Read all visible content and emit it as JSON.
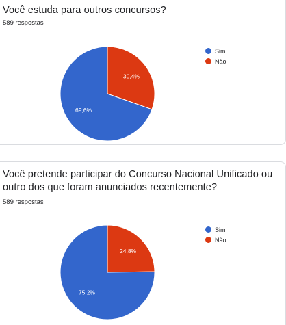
{
  "colors": {
    "sim": "#3366cc",
    "nao": "#dc3912",
    "slice_border": "#ffffff"
  },
  "questions": [
    {
      "title": "Você estuda para outros concursos?",
      "responses": "589 respostas"
    },
    {
      "title": "Você pretende participar do Concurso Nacional Unificado ou outro dos que foram anunciados recentemente?",
      "responses": "589 respostas"
    }
  ],
  "chart_data": [
    {
      "type": "pie",
      "categories": [
        "Sim",
        "Não"
      ],
      "values": [
        69.6,
        30.4
      ],
      "labels": [
        "69,6%",
        "30,4%"
      ],
      "colors": [
        "#3366cc",
        "#dc3912"
      ],
      "legend": "right"
    },
    {
      "type": "pie",
      "categories": [
        "Sim",
        "Não"
      ],
      "values": [
        75.2,
        24.8
      ],
      "labels": [
        "75,2%",
        "24,8%"
      ],
      "colors": [
        "#3366cc",
        "#dc3912"
      ],
      "legend": "right"
    }
  ]
}
